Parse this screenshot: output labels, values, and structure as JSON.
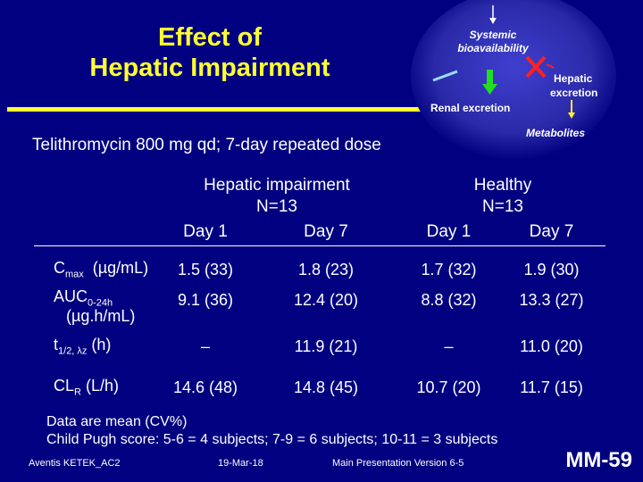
{
  "title": {
    "line1": "Effect of",
    "line2": "Hepatic Impairment"
  },
  "subtitle": "Telithromycin 800 mg qd; 7-day repeated dose",
  "diagram": {
    "systemic": "Systemic",
    "bioavailability": "bioavailability",
    "hepatic": "Hepatic",
    "excretion": "excretion",
    "renal": "Renal excretion",
    "metabolites": "Metabolites",
    "colors": {
      "glow": "#3f3fcf",
      "arrow_green": "#22dd22",
      "arrow_yellow": "#ffee33",
      "cross": "#ff2020",
      "arrow_white": "#ffffff",
      "arrow_cyan": "#99ddff"
    }
  },
  "table": {
    "groups": [
      {
        "name": "Hepatic impairment",
        "n": "N=13"
      },
      {
        "name": "Healthy",
        "n": "N=13"
      }
    ],
    "days": [
      "Day 1",
      "Day 7",
      "Day 1",
      "Day 7"
    ],
    "rows": [
      {
        "label_main": "C",
        "label_sub": "max",
        "label_rest": "  (µg/mL)",
        "label_line2": "",
        "values": [
          "1.5  (33)",
          "1.8  (23)",
          "1.7  (32)",
          "1.9  (30)"
        ]
      },
      {
        "label_main": "AUC",
        "label_sub": "0-24h",
        "label_rest": "",
        "label_line2": "(µg.h/mL)",
        "values": [
          "9.1  (36)",
          "12.4  (20)",
          "8.8  (32)",
          "13.3  (27)"
        ]
      },
      {
        "label_main": "t",
        "label_sub": "1/2, λz",
        "label_rest": " (h)",
        "label_line2": "",
        "values": [
          "–",
          "11.9  (21)",
          "–",
          "11.0  (20)"
        ]
      },
      {
        "label_main": "CL",
        "label_sub": "R",
        "label_rest": " (L/h)",
        "label_line2": "",
        "values": [
          "14.6  (48)",
          "14.8  (45)",
          "10.7  (20)",
          "11.7  (15)"
        ]
      }
    ]
  },
  "notes": {
    "line1": "Data are mean (CV%)",
    "line2": "Child Pugh score: 5-6 = 4 subjects; 7-9 = 6 subjects; 10-11 = 3 subjects"
  },
  "footer": {
    "left": "Aventis KETEK_AC2",
    "date": "19-Mar-18",
    "version": "Main Presentation Version 6-5",
    "slide_id": "MM-59"
  }
}
